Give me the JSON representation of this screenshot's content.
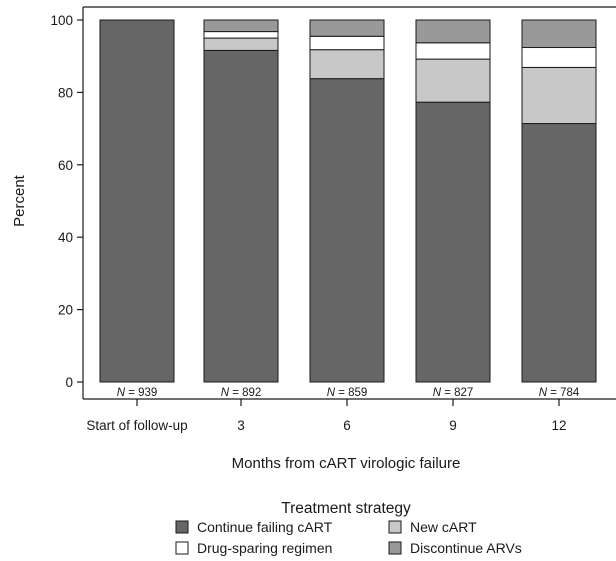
{
  "chart_data": {
    "type": "bar",
    "stacked": true,
    "title": "",
    "xlabel": "Months from cART virologic failure",
    "ylabel": "Percent",
    "ylim": [
      0,
      100
    ],
    "yticks": [
      0,
      20,
      40,
      60,
      80,
      100
    ],
    "categories": [
      "Start of follow-up",
      "3",
      "6",
      "9",
      "12"
    ],
    "n_labels": [
      "939",
      "892",
      "859",
      "827",
      "784"
    ],
    "n_prefix": "N",
    "n_sep": " = ",
    "series": [
      {
        "name": "Continue failing cART",
        "color": "#666666",
        "values": [
          100,
          91.6,
          83.8,
          77.3,
          71.4
        ]
      },
      {
        "name": "New cART",
        "color": "#c8c8c8",
        "values": [
          0,
          3.4,
          8.0,
          11.9,
          15.5
        ]
      },
      {
        "name": "Drug-sparing regimen",
        "color": "#ffffff",
        "values": [
          0,
          1.8,
          3.7,
          4.5,
          5.5
        ]
      },
      {
        "name": "Discontinue ARVs",
        "color": "#999999",
        "values": [
          0,
          3.2,
          4.5,
          6.3,
          7.6
        ]
      }
    ],
    "legend": {
      "title": "Treatment strategy",
      "placement": "bottom-center",
      "order": [
        "Continue failing cART",
        "New cART",
        "Drug-sparing regimen",
        "Discontinue ARVs"
      ]
    },
    "grid": false
  }
}
